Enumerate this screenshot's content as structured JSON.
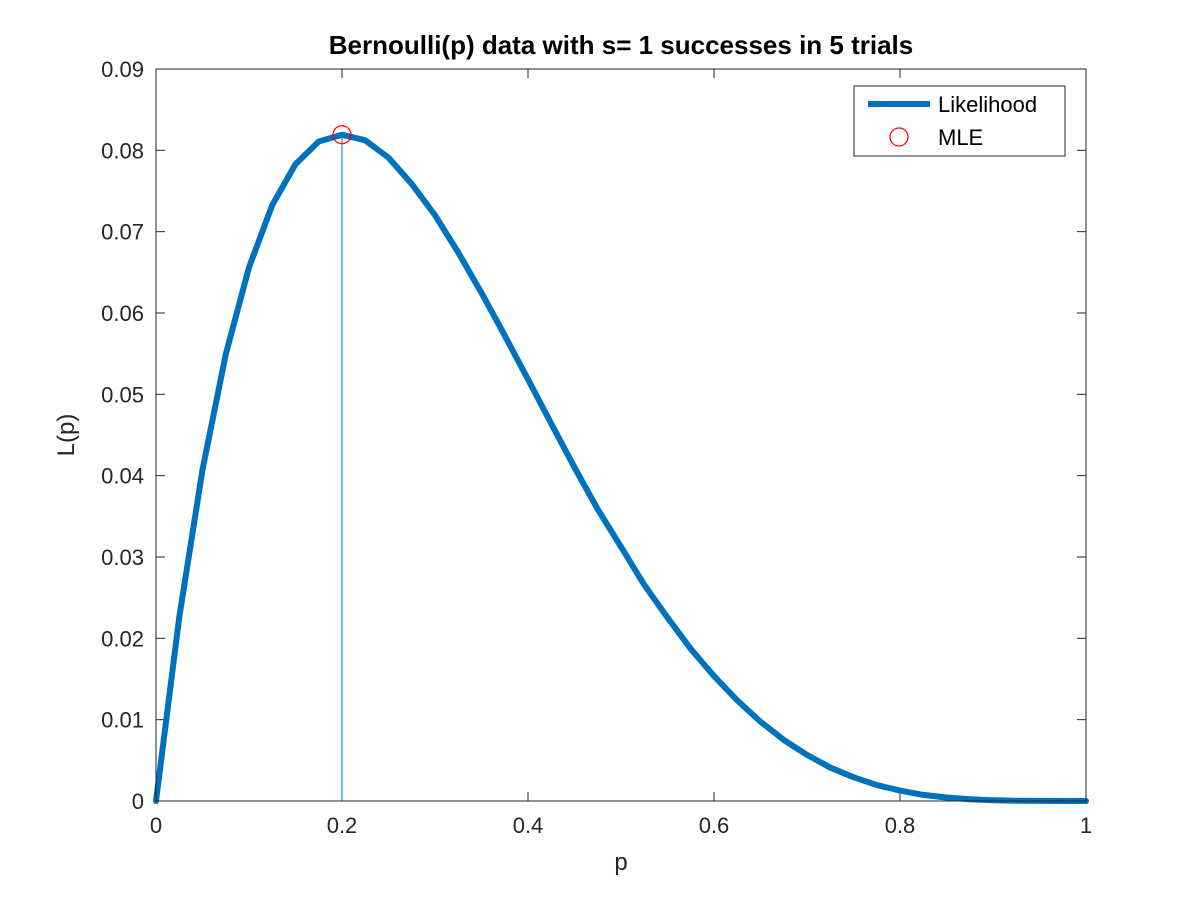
{
  "chart_data": {
    "type": "line",
    "title": "Bernoulli(p) data with s= 1 successes in 5 trials",
    "xlabel": "p",
    "ylabel": "L(p)",
    "xlim": [
      0,
      1
    ],
    "ylim": [
      0,
      0.09
    ],
    "xticks": [
      0,
      0.2,
      0.4,
      0.6,
      0.8,
      1
    ],
    "xtick_labels": [
      "0",
      "0.2",
      "0.4",
      "0.6",
      "0.8",
      "1"
    ],
    "yticks": [
      0,
      0.01,
      0.02,
      0.03,
      0.04,
      0.05,
      0.06,
      0.07,
      0.08,
      0.09
    ],
    "ytick_labels": [
      "0",
      "0.01",
      "0.02",
      "0.03",
      "0.04",
      "0.05",
      "0.06",
      "0.07",
      "0.08",
      "0.09"
    ],
    "grid": false,
    "legend_position": "top-right",
    "series": [
      {
        "name": "Likelihood",
        "kind": "line",
        "color": "#0072bd",
        "x": [
          0,
          0.025,
          0.05,
          0.075,
          0.1,
          0.125,
          0.15,
          0.175,
          0.2,
          0.225,
          0.25,
          0.275,
          0.3,
          0.325,
          0.35,
          0.375,
          0.4,
          0.425,
          0.45,
          0.475,
          0.5,
          0.525,
          0.55,
          0.575,
          0.6,
          0.625,
          0.65,
          0.675,
          0.7,
          0.725,
          0.75,
          0.775,
          0.8,
          0.825,
          0.85,
          0.875,
          0.9,
          0.925,
          0.95,
          0.975,
          1
        ],
        "y": [
          0,
          0.02259,
          0.04073,
          0.05492,
          0.06561,
          0.07327,
          0.0783,
          0.08109,
          0.08192,
          0.08123,
          0.0791,
          0.07586,
          0.07203,
          0.06744,
          0.06248,
          0.05722,
          0.05184,
          0.0464,
          0.04101,
          0.03586,
          0.03125,
          0.02658,
          0.02255,
          0.0187,
          0.01536,
          0.01236,
          0.00975,
          0.00751,
          0.00567,
          0.00411,
          0.00293,
          0.00196,
          0.00128,
          0.00075,
          0.00043,
          0.00021,
          9e-05,
          3e-05,
          1e-05,
          0,
          0
        ]
      },
      {
        "name": "MLE",
        "kind": "marker",
        "marker": "circle",
        "color": "#ff0000",
        "x": [
          0.2
        ],
        "y": [
          0.08192
        ]
      }
    ],
    "annotations": [
      {
        "kind": "vertical-line",
        "x": 0.2,
        "y_from": 0,
        "y_to": 0.08192,
        "color": "#0072bd"
      }
    ]
  }
}
